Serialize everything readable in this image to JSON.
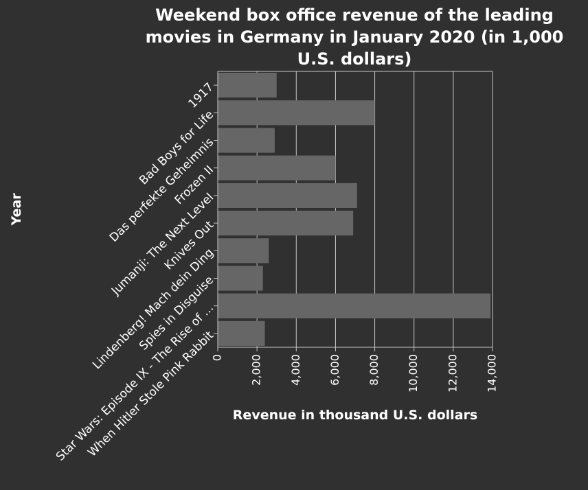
{
  "colors": {
    "background": "#303030",
    "bar": "#666666",
    "grid": "#c8c8c8",
    "text": "#ffffff"
  },
  "chart_data": {
    "type": "bar",
    "orientation": "horizontal",
    "title": "Weekend box office revenue of the leading movies in Germany in January 2020 (in 1,000 U.S. dollars)",
    "title_lines": [
      "Weekend box office revenue of the leading",
      "movies in Germany in January 2020 (in 1,000",
      "U.S. dollars)"
    ],
    "xlabel": "Revenue in thousand U.S. dollars",
    "ylabel": "Year",
    "xlim": [
      0,
      14000
    ],
    "xticks": [
      0,
      2000,
      4000,
      6000,
      8000,
      10000,
      12000,
      14000
    ],
    "xtick_labels": [
      "0",
      "2,000",
      "4,000",
      "6,000",
      "8,000",
      "10,000",
      "12,000",
      "14,000"
    ],
    "grid": true,
    "categories": [
      "1917",
      "Bad Boys for Life",
      "Das perfekte Geheimnis",
      "Frozen II",
      "Jumanji: The Next Level",
      "Knives Out",
      "Lindenberg! Mach dein Ding",
      "Spies in Disguise",
      "Star Wars: Episode IX - The Rise of ...",
      "When Hitler Stole Pink Rabbit"
    ],
    "values": [
      3000,
      8000,
      2900,
      6000,
      7100,
      6900,
      2600,
      2300,
      13900,
      2400
    ]
  }
}
